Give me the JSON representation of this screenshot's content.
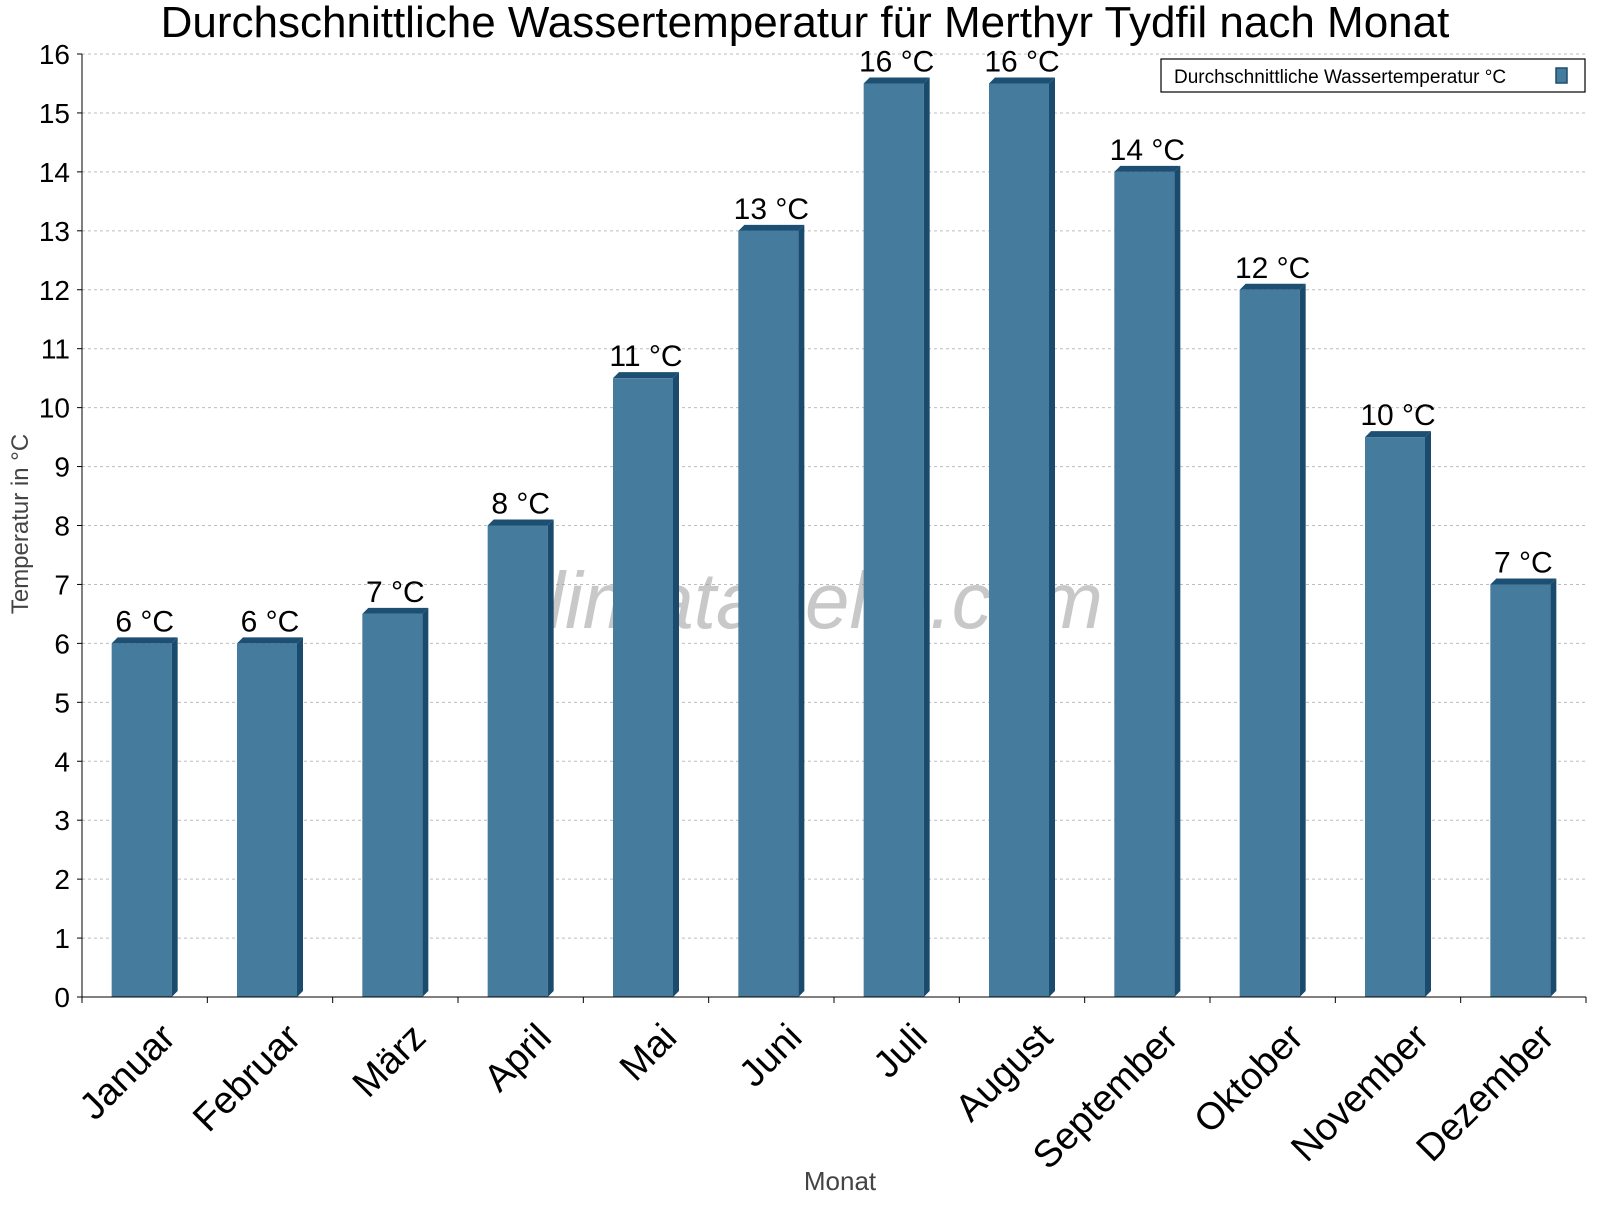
{
  "chart_data": {
    "type": "bar",
    "title": "Durchschnittliche Wassertemperatur für Merthyr Tydfil nach Monat",
    "xlabel": "Monat",
    "ylabel": "Temperatur in °C",
    "categories": [
      "Januar",
      "Februar",
      "März",
      "April",
      "Mai",
      "Juni",
      "Juli",
      "August",
      "September",
      "Oktober",
      "November",
      "Dezember"
    ],
    "series": [
      {
        "name": "Durchschnittliche Wassertemperatur °C",
        "values": [
          6,
          6,
          6.5,
          8,
          10.5,
          13,
          15.5,
          15.5,
          14,
          12,
          9.5,
          7
        ],
        "labels": [
          "6 °C",
          "6 °C",
          "7 °C",
          "8 °C",
          "11 °C",
          "13 °C",
          "16 °C",
          "16 °C",
          "14 °C",
          "12 °C",
          "10 °C",
          "7 °C"
        ],
        "color": "#457b9d"
      }
    ],
    "ylim": [
      0,
      16
    ],
    "yticks": [
      0,
      1,
      2,
      3,
      4,
      5,
      6,
      7,
      8,
      9,
      10,
      11,
      12,
      13,
      14,
      15,
      16
    ],
    "grid": true,
    "legend_position": "top-right",
    "watermark": "klimatabelle.com"
  }
}
